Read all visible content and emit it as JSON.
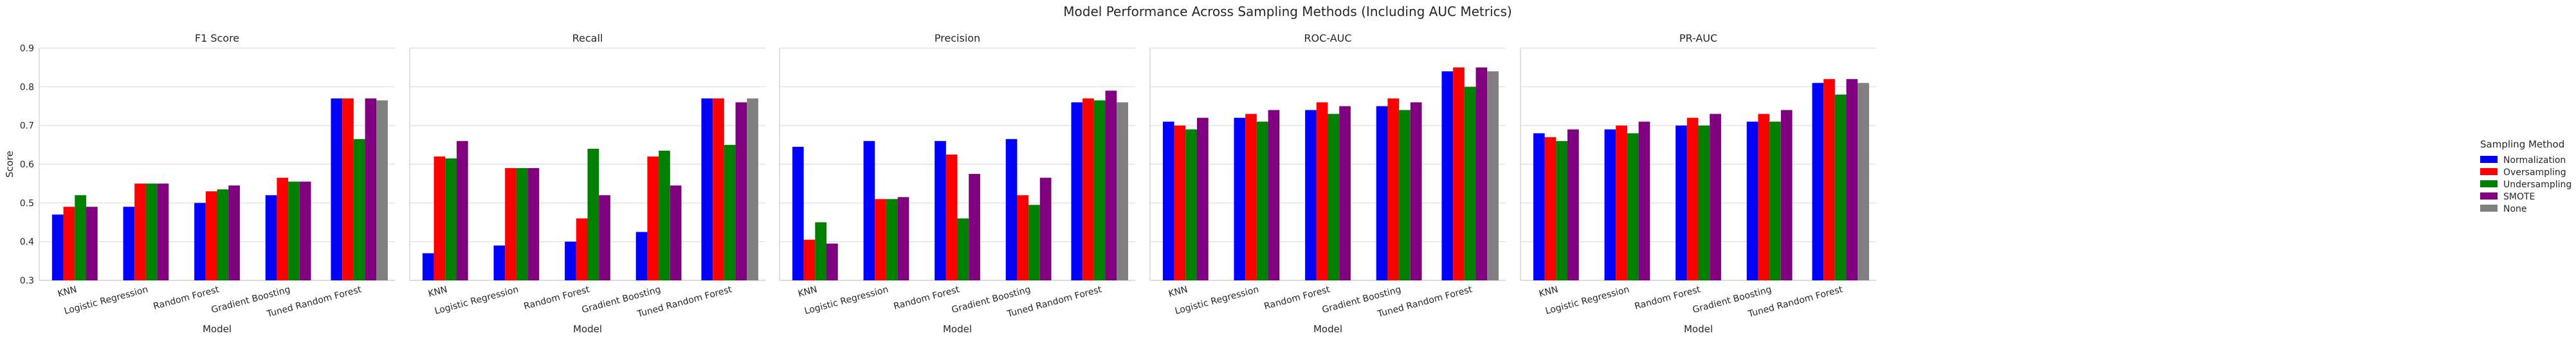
{
  "title": "Model Performance Across Sampling Methods (Including AUC Metrics)",
  "legend": {
    "title": "Sampling Method",
    "entries": [
      {
        "name": "Normalization",
        "color": "#0000ff"
      },
      {
        "name": "Oversampling",
        "color": "#ff0000"
      },
      {
        "name": "Undersampling",
        "color": "#008000"
      },
      {
        "name": "SMOTE",
        "color": "#800080"
      },
      {
        "name": "None",
        "color": "#808080"
      }
    ]
  },
  "chart_data": [
    {
      "type": "bar",
      "title": "F1 Score",
      "xlabel": "Model",
      "ylabel": "Score",
      "ylim": [
        0.3,
        0.9
      ],
      "yticks": [
        "0.3",
        "0.4",
        "0.5",
        "0.6",
        "0.7",
        "0.8",
        "0.9"
      ],
      "grid": true,
      "categories": [
        "KNN",
        "Logistic Regression",
        "Random Forest",
        "Gradient Boosting",
        "Tuned Random Forest"
      ],
      "series": [
        {
          "name": "Normalization",
          "values": [
            0.47,
            0.49,
            0.5,
            0.52,
            0.77
          ]
        },
        {
          "name": "Oversampling",
          "values": [
            0.49,
            0.55,
            0.53,
            0.565,
            0.77
          ]
        },
        {
          "name": "Undersampling",
          "values": [
            0.52,
            0.55,
            0.535,
            0.555,
            0.665
          ]
        },
        {
          "name": "SMOTE",
          "values": [
            0.49,
            0.55,
            0.545,
            0.555,
            0.77
          ]
        },
        {
          "name": "None",
          "values": [
            null,
            null,
            null,
            null,
            0.765
          ]
        }
      ]
    },
    {
      "type": "bar",
      "title": "Recall",
      "xlabel": "Model",
      "ylabel": "",
      "ylim": [
        0.3,
        0.9
      ],
      "grid": true,
      "categories": [
        "KNN",
        "Logistic Regression",
        "Random Forest",
        "Gradient Boosting",
        "Tuned Random Forest"
      ],
      "series": [
        {
          "name": "Normalization",
          "values": [
            0.37,
            0.39,
            0.4,
            0.425,
            0.77
          ]
        },
        {
          "name": "Oversampling",
          "values": [
            0.62,
            0.59,
            0.46,
            0.62,
            0.77
          ]
        },
        {
          "name": "Undersampling",
          "values": [
            0.615,
            0.59,
            0.64,
            0.635,
            0.65
          ]
        },
        {
          "name": "SMOTE",
          "values": [
            0.66,
            0.59,
            0.52,
            0.545,
            0.76
          ]
        },
        {
          "name": "None",
          "values": [
            null,
            null,
            null,
            null,
            0.77
          ]
        }
      ]
    },
    {
      "type": "bar",
      "title": "Precision",
      "xlabel": "Model",
      "ylabel": "",
      "ylim": [
        0.3,
        0.9
      ],
      "grid": true,
      "categories": [
        "KNN",
        "Logistic Regression",
        "Random Forest",
        "Gradient Boosting",
        "Tuned Random Forest"
      ],
      "series": [
        {
          "name": "Normalization",
          "values": [
            0.645,
            0.66,
            0.66,
            0.665,
            0.76
          ]
        },
        {
          "name": "Oversampling",
          "values": [
            0.405,
            0.51,
            0.625,
            0.52,
            0.77
          ]
        },
        {
          "name": "Undersampling",
          "values": [
            0.45,
            0.51,
            0.46,
            0.495,
            0.765
          ]
        },
        {
          "name": "SMOTE",
          "values": [
            0.395,
            0.515,
            0.575,
            0.565,
            0.79
          ]
        },
        {
          "name": "None",
          "values": [
            null,
            null,
            null,
            null,
            0.76
          ]
        }
      ]
    },
    {
      "type": "bar",
      "title": "ROC-AUC",
      "xlabel": "Model",
      "ylabel": "",
      "ylim": [
        0.3,
        0.9
      ],
      "grid": true,
      "categories": [
        "KNN",
        "Logistic Regression",
        "Random Forest",
        "Gradient Boosting",
        "Tuned Random Forest"
      ],
      "series": [
        {
          "name": "Normalization",
          "values": [
            0.71,
            0.72,
            0.74,
            0.75,
            0.84
          ]
        },
        {
          "name": "Oversampling",
          "values": [
            0.7,
            0.73,
            0.76,
            0.77,
            0.85
          ]
        },
        {
          "name": "Undersampling",
          "values": [
            0.69,
            0.71,
            0.73,
            0.74,
            0.8
          ]
        },
        {
          "name": "SMOTE",
          "values": [
            0.72,
            0.74,
            0.75,
            0.76,
            0.85
          ]
        },
        {
          "name": "None",
          "values": [
            null,
            null,
            null,
            null,
            0.84
          ]
        }
      ]
    },
    {
      "type": "bar",
      "title": "PR-AUC",
      "xlabel": "Model",
      "ylabel": "",
      "ylim": [
        0.3,
        0.9
      ],
      "grid": true,
      "categories": [
        "KNN",
        "Logistic Regression",
        "Random Forest",
        "Gradient Boosting",
        "Tuned Random Forest"
      ],
      "series": [
        {
          "name": "Normalization",
          "values": [
            0.68,
            0.69,
            0.7,
            0.71,
            0.81
          ]
        },
        {
          "name": "Oversampling",
          "values": [
            0.67,
            0.7,
            0.72,
            0.73,
            0.82
          ]
        },
        {
          "name": "Undersampling",
          "values": [
            0.66,
            0.68,
            0.7,
            0.71,
            0.78
          ]
        },
        {
          "name": "SMOTE",
          "values": [
            0.69,
            0.71,
            0.73,
            0.74,
            0.82
          ]
        },
        {
          "name": "None",
          "values": [
            null,
            null,
            null,
            null,
            0.81
          ]
        }
      ]
    }
  ]
}
